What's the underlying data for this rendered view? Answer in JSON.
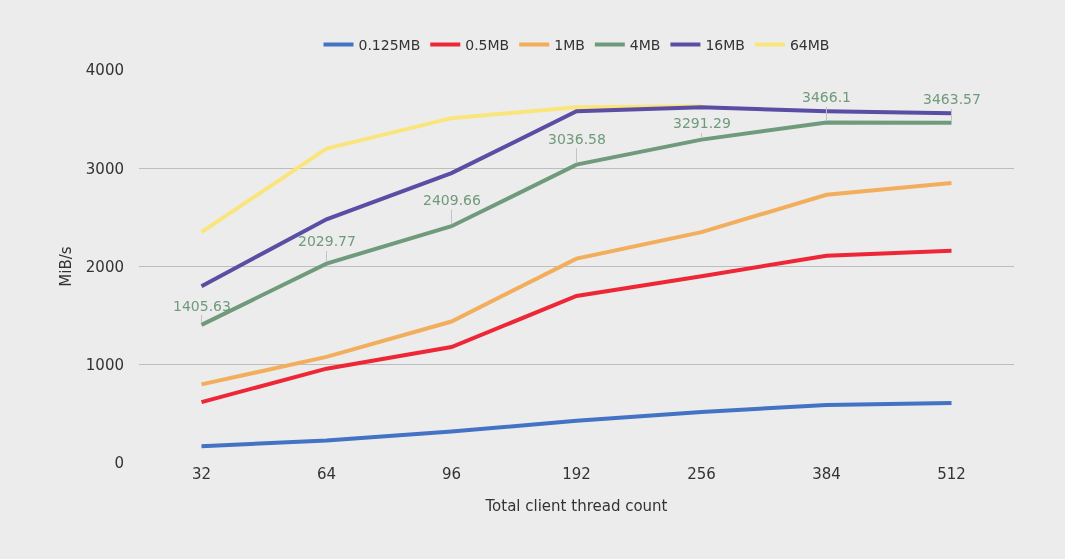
{
  "chart_data": {
    "type": "line",
    "xlabel": "Total client thread count",
    "ylabel": "MiB/s",
    "categories": [
      "32",
      "64",
      "96",
      "192",
      "256",
      "384",
      "512"
    ],
    "ylim": [
      0,
      4000
    ],
    "yticks": [
      0,
      1000,
      2000,
      3000,
      4000
    ],
    "grid": "y",
    "legend": "top",
    "series": [
      {
        "name": "0.125MB",
        "color": "#4472c4",
        "values": [
          170,
          230,
          320,
          430,
          520,
          590,
          610
        ]
      },
      {
        "name": "0.5MB",
        "color": "#ee2737",
        "values": [
          620,
          960,
          1180,
          1700,
          1900,
          2110,
          2160
        ]
      },
      {
        "name": "1MB",
        "color": "#f2ae5c",
        "values": [
          800,
          1080,
          1440,
          2080,
          2350,
          2730,
          2850
        ]
      },
      {
        "name": "4MB",
        "color": "#6f9a7b",
        "values": [
          1405.63,
          2029.77,
          2409.66,
          3036.58,
          3291.29,
          3466.1,
          3463.57
        ],
        "value_labels": [
          "1405.63",
          "2029.77",
          "2409.66",
          "3036.58",
          "3291.29",
          "3466.1",
          "3463.57"
        ]
      },
      {
        "name": "16MB",
        "color": "#5b4da4",
        "values": [
          1800,
          2480,
          2950,
          3580,
          3620,
          3580,
          3560
        ]
      },
      {
        "name": "64MB",
        "color": "#fae57c",
        "values": [
          2350,
          3200,
          3510,
          3620,
          3630,
          null,
          null
        ]
      }
    ]
  }
}
